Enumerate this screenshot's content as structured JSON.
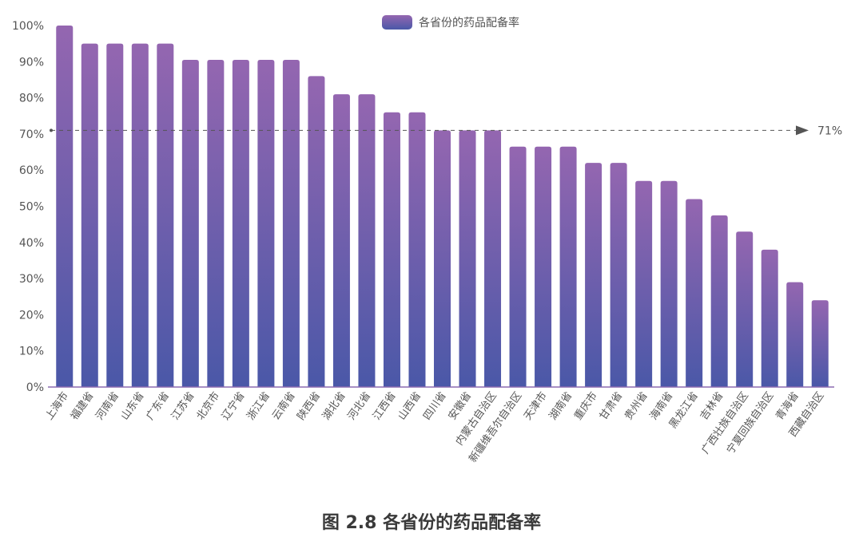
{
  "chart_data": {
    "type": "bar",
    "legend": "各省份的药品配备率",
    "legend_position": "top-center",
    "ylim": [
      0,
      100
    ],
    "yticks": [
      "0%",
      "10%",
      "20%",
      "30%",
      "40%",
      "50%",
      "60%",
      "70%",
      "80%",
      "90%",
      "100%"
    ],
    "reference_line": {
      "value": 71,
      "label": "71%"
    },
    "categories": [
      "上海市",
      "福建省",
      "河南省",
      "山东省",
      "广东省",
      "江苏省",
      "北京市",
      "辽宁省",
      "浙江省",
      "云南省",
      "陕西省",
      "湖北省",
      "河北省",
      "江西省",
      "山西省",
      "四川省",
      "安徽省",
      "内蒙古自治区",
      "新疆维吾尔自治区",
      "天津市",
      "湖南省",
      "重庆市",
      "甘肃省",
      "贵州省",
      "海南省",
      "黑龙江省",
      "吉林省",
      "广西壮族自治区",
      "宁夏回族自治区",
      "青海省",
      "西藏自治区"
    ],
    "values": [
      100,
      95,
      95,
      95,
      95,
      90.5,
      90.5,
      90.5,
      90.5,
      90.5,
      86,
      81,
      81,
      76,
      76,
      71,
      71,
      71,
      66.5,
      66.5,
      66.5,
      62,
      62,
      57,
      57,
      52,
      47.5,
      43,
      38,
      29,
      24
    ],
    "colors": {
      "bar_top": "#9466b0",
      "bar_bottom": "#4a58a8",
      "axis": "#8b6bb0"
    }
  },
  "caption": "图 2.8 各省份的药品配备率"
}
